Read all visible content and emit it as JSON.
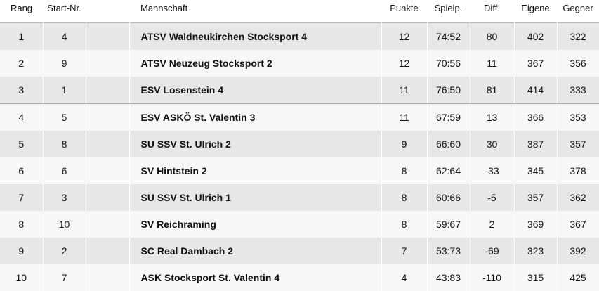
{
  "table": {
    "headers": {
      "rank": "Rang",
      "start": "Start-Nr.",
      "team": "Mannschaft",
      "points": "Punkte",
      "games": "Spielp.",
      "diff": "Diff.",
      "own": "Eigene",
      "opp": "Gegner"
    },
    "rows": [
      {
        "rank": "1",
        "start": "4",
        "team": "ATSV Waldneukirchen Stocksport 4",
        "points": "12",
        "games": "74:52",
        "diff": "80",
        "own": "402",
        "opp": "322"
      },
      {
        "rank": "2",
        "start": "9",
        "team": "ATSV Neuzeug Stocksport 2",
        "points": "12",
        "games": "70:56",
        "diff": "11",
        "own": "367",
        "opp": "356"
      },
      {
        "rank": "3",
        "start": "1",
        "team": "ESV Losenstein 4",
        "points": "11",
        "games": "76:50",
        "diff": "81",
        "own": "414",
        "opp": "333"
      },
      {
        "rank": "4",
        "start": "5",
        "team": "ESV ASKÖ St. Valentin 3",
        "points": "11",
        "games": "67:59",
        "diff": "13",
        "own": "366",
        "opp": "353"
      },
      {
        "rank": "5",
        "start": "8",
        "team": "SU SSV St. Ulrich 2",
        "points": "9",
        "games": "66:60",
        "diff": "30",
        "own": "387",
        "opp": "357"
      },
      {
        "rank": "6",
        "start": "6",
        "team": "SV Hintstein 2",
        "points": "8",
        "games": "62:64",
        "diff": "-33",
        "own": "345",
        "opp": "378"
      },
      {
        "rank": "7",
        "start": "3",
        "team": "SU SSV St. Ulrich 1",
        "points": "8",
        "games": "60:66",
        "diff": "-5",
        "own": "357",
        "opp": "362"
      },
      {
        "rank": "8",
        "start": "10",
        "team": "SV Reichraming",
        "points": "8",
        "games": "59:67",
        "diff": "2",
        "own": "369",
        "opp": "367"
      },
      {
        "rank": "9",
        "start": "2",
        "team": "SC Real Dambach 2",
        "points": "7",
        "games": "53:73",
        "diff": "-69",
        "own": "323",
        "opp": "392"
      },
      {
        "rank": "10",
        "start": "7",
        "team": "ASK Stocksport St. Valentin 4",
        "points": "4",
        "games": "43:83",
        "diff": "-110",
        "own": "315",
        "opp": "425"
      }
    ],
    "colors": {
      "row_dark": "#e7e7e7",
      "row_light": "#f7f7f7",
      "promotion_line": "#8cc84b"
    }
  }
}
